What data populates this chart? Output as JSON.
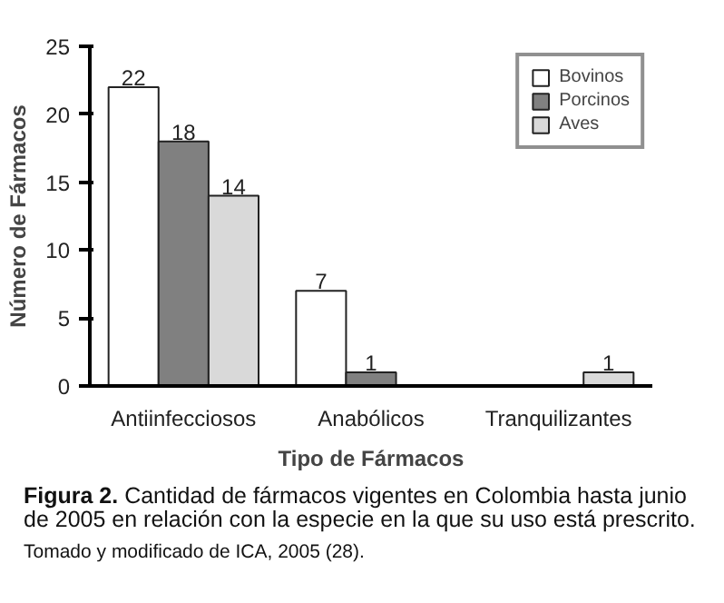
{
  "chart_data": {
    "type": "bar",
    "xlabel": "Tipo de Fármacos",
    "ylabel": "Número de Fármacos",
    "categories": [
      "Antiinfecciosos",
      "Anabólicos",
      "Tranquilizantes"
    ],
    "series": [
      {
        "name": "Bovinos",
        "color": "#ffffff",
        "values": [
          22,
          7,
          null
        ]
      },
      {
        "name": "Porcinos",
        "color": "#808080",
        "values": [
          18,
          1,
          null
        ]
      },
      {
        "name": "Aves",
        "color": "#d9d9d9",
        "values": [
          14,
          null,
          1
        ]
      }
    ],
    "ylim": [
      0,
      25
    ],
    "yticks": [
      0,
      5,
      10,
      15,
      20,
      25
    ],
    "grid": false,
    "legend": "top right",
    "data_labels": true,
    "annotations": [
      "Figura 2. Cantidad de fármacos vigentes en Colombia hasta junio de 2005 en relación con la especie en la que su uso está prescrito.",
      "Tomado y modificado de ICA, 2005 (28)."
    ]
  }
}
